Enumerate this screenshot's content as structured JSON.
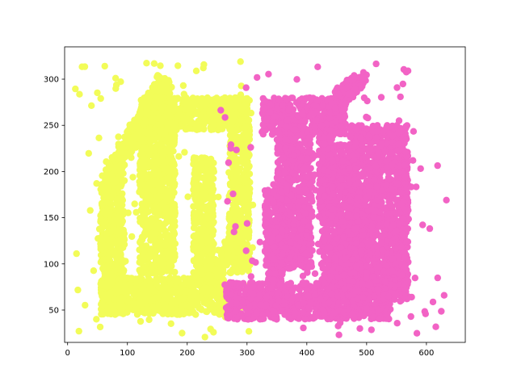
{
  "chart_data": {
    "type": "scatter",
    "title": "",
    "xlabel": "",
    "ylabel": "",
    "xlim": [
      -5,
      665
    ],
    "ylim": [
      15,
      335
    ],
    "xticks": [
      0,
      100,
      200,
      300,
      400,
      500,
      600
    ],
    "yticks": [
      50,
      100,
      150,
      200,
      250,
      300
    ],
    "grid": false,
    "series": [
      {
        "color": "#f2fc58",
        "shapes": [
          {
            "kind": "rect",
            "x": [
              120,
              300
            ],
            "y": [
              245,
              280
            ]
          },
          {
            "kind": "rect",
            "x": [
              120,
              180
            ],
            "y": [
              90,
              280
            ]
          },
          {
            "kind": "rect",
            "x": [
              60,
              270
            ],
            "y": [
              45,
              85
            ]
          },
          {
            "kind": "rect",
            "x": [
              55,
              95
            ],
            "y": [
              45,
              200
            ]
          },
          {
            "kind": "rect",
            "x": [
              210,
              245
            ],
            "y": [
              85,
              215
            ]
          },
          {
            "kind": "rect",
            "x": [
              270,
              305
            ],
            "y": [
              90,
              280
            ]
          },
          {
            "kind": "line",
            "from": [
              75,
              200
            ],
            "to": [
              165,
              300
            ]
          },
          {
            "kind": "line",
            "from": [
              240,
              85
            ],
            "to": [
              285,
              130
            ]
          }
        ],
        "noise_x": [
          10,
          310
        ],
        "noise_y": [
          20,
          320
        ]
      },
      {
        "color": "#f263c5",
        "shapes": [
          {
            "kind": "rect",
            "x": [
              325,
              465
            ],
            "y": [
              240,
              280
            ]
          },
          {
            "kind": "rect",
            "x": [
              350,
              410
            ],
            "y": [
              95,
              240
            ]
          },
          {
            "kind": "rect",
            "x": [
              330,
              360
            ],
            "y": [
              80,
              180
            ]
          },
          {
            "kind": "rect",
            "x": [
              265,
              540
            ],
            "y": [
              40,
              80
            ]
          },
          {
            "kind": "rect",
            "x": [
              425,
              480
            ],
            "y": [
              45,
              230
            ]
          },
          {
            "kind": "rect",
            "x": [
              470,
              570
            ],
            "y": [
              60,
              250
            ]
          },
          {
            "kind": "rect",
            "x": [
              420,
              445
            ],
            "y": [
              150,
              240
            ]
          },
          {
            "kind": "line",
            "from": [
              455,
              280
            ],
            "to": [
              490,
              300
            ]
          }
        ],
        "noise_x": [
          255,
          635
        ],
        "noise_y": [
          20,
          320
        ]
      }
    ]
  }
}
